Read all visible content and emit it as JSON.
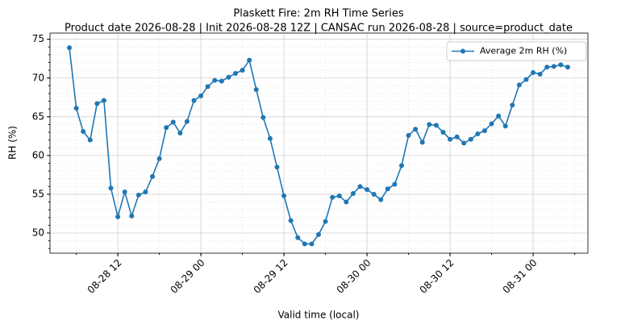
{
  "chart_data": {
    "type": "line",
    "title": "Plaskett Fire: 2m RH Time Series",
    "subtitle": "Product date 2026-08-28 | Init 2026-08-28 12Z | CANSAC run 2026-08-28 | source=product_date",
    "x_label": "Valid time (local)",
    "y_label": "RH (%)",
    "x": [
      "08-28 05",
      "08-28 06",
      "08-28 07",
      "08-28 08",
      "08-28 09",
      "08-28 10",
      "08-28 11",
      "08-28 12",
      "08-28 13",
      "08-28 14",
      "08-28 15",
      "08-28 16",
      "08-28 17",
      "08-28 18",
      "08-28 19",
      "08-28 20",
      "08-28 21",
      "08-28 22",
      "08-28 23",
      "08-29 00",
      "08-29 01",
      "08-29 02",
      "08-29 03",
      "08-29 04",
      "08-29 05",
      "08-29 06",
      "08-29 07",
      "08-29 08",
      "08-29 09",
      "08-29 10",
      "08-29 11",
      "08-29 12",
      "08-29 13",
      "08-29 14",
      "08-29 15",
      "08-29 16",
      "08-29 17",
      "08-29 18",
      "08-29 19",
      "08-29 20",
      "08-29 21",
      "08-29 22",
      "08-29 23",
      "08-30 00",
      "08-30 01",
      "08-30 02",
      "08-30 03",
      "08-30 04",
      "08-30 05",
      "08-30 06",
      "08-30 07",
      "08-30 08",
      "08-30 09",
      "08-30 10",
      "08-30 11",
      "08-30 12",
      "08-30 13",
      "08-30 14",
      "08-30 15",
      "08-30 16",
      "08-30 17",
      "08-30 18",
      "08-30 19",
      "08-30 20",
      "08-30 21",
      "08-30 22",
      "08-30 23",
      "08-31 00",
      "08-31 01",
      "08-31 02",
      "08-31 03",
      "08-31 04",
      "08-31 05"
    ],
    "series": [
      {
        "name": "Average 2m RH (%)",
        "color": "#1f77b4",
        "values": [
          73.9,
          66.1,
          63.1,
          62.0,
          66.7,
          67.1,
          55.8,
          52.1,
          55.3,
          52.2,
          54.9,
          55.3,
          57.3,
          59.6,
          63.6,
          64.3,
          62.9,
          64.4,
          67.1,
          67.7,
          68.9,
          69.7,
          69.6,
          70.1,
          70.6,
          71.0,
          72.3,
          68.5,
          64.9,
          62.2,
          58.5,
          54.8,
          51.6,
          49.4,
          48.6,
          48.6,
          49.8,
          51.5,
          54.6,
          54.8,
          54.0,
          55.1,
          56.0,
          55.6,
          55.0,
          54.3,
          55.7,
          56.3,
          58.7,
          62.6,
          63.4,
          61.7,
          64.0,
          63.9,
          63.0,
          62.1,
          62.4,
          61.6,
          62.1,
          62.8,
          63.2,
          64.1,
          65.1,
          63.8,
          66.5,
          69.1,
          69.8,
          70.7,
          70.5,
          71.4,
          71.5,
          71.7,
          71.4
        ]
      }
    ],
    "xlim": [
      "08-28 02:12",
      "08-31 07:55"
    ],
    "xticks": [
      "08-28 12",
      "08-29 00",
      "08-29 12",
      "08-30 00",
      "08-30 12",
      "08-31 00"
    ],
    "ylim": [
      47.4,
      75.8
    ],
    "yticks": [
      50,
      55,
      60,
      65,
      70,
      75
    ],
    "grid": true,
    "legend": "upper right"
  }
}
